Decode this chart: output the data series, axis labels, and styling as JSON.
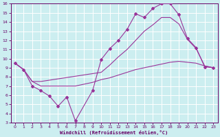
{
  "xlabel": "Windchill (Refroidissement éolien,°C)",
  "bg_color": "#cceef0",
  "grid_color": "#ffffff",
  "line_color": "#993399",
  "spine_color": "#660066",
  "label_color": "#660066",
  "xlim": [
    -0.5,
    23.5
  ],
  "ylim": [
    3,
    16
  ],
  "xticks": [
    0,
    1,
    2,
    3,
    4,
    5,
    6,
    7,
    8,
    9,
    10,
    11,
    12,
    13,
    14,
    15,
    16,
    17,
    18,
    19,
    20,
    21,
    22,
    23
  ],
  "yticks": [
    3,
    4,
    5,
    6,
    7,
    8,
    9,
    10,
    11,
    12,
    13,
    14,
    15,
    16
  ],
  "curve1_x": [
    0,
    1,
    2,
    3,
    4,
    5,
    6,
    7,
    9,
    10,
    11,
    12,
    13,
    14,
    15,
    16,
    17,
    18,
    19,
    20,
    21,
    22,
    23
  ],
  "curve1_y": [
    9.5,
    8.8,
    7.0,
    6.5,
    5.9,
    4.8,
    5.8,
    3.2,
    6.5,
    9.9,
    11.1,
    12.0,
    13.2,
    14.9,
    14.5,
    15.5,
    16.0,
    16.0,
    14.8,
    12.2,
    11.2,
    9.1,
    9.0
  ],
  "curve2_x": [
    0,
    1,
    2,
    3,
    10,
    11,
    12,
    13,
    14,
    15,
    16,
    17,
    18,
    19,
    20,
    21,
    22,
    23
  ],
  "curve2_y": [
    9.5,
    8.8,
    7.5,
    7.5,
    8.5,
    9.3,
    10.2,
    11.0,
    12.0,
    13.0,
    13.7,
    14.5,
    14.5,
    13.8,
    12.1,
    11.1,
    9.2,
    9.0
  ],
  "curve3_x": [
    0,
    1,
    2,
    3,
    4,
    5,
    6,
    7,
    8,
    9,
    10,
    11,
    12,
    13,
    14,
    15,
    16,
    17,
    18,
    19,
    20,
    21,
    22,
    23
  ],
  "curve3_y": [
    9.5,
    8.8,
    7.5,
    7.0,
    7.0,
    7.0,
    7.0,
    7.0,
    7.2,
    7.4,
    7.7,
    7.9,
    8.2,
    8.5,
    8.8,
    9.0,
    9.2,
    9.4,
    9.6,
    9.7,
    9.6,
    9.5,
    9.2,
    9.0
  ]
}
